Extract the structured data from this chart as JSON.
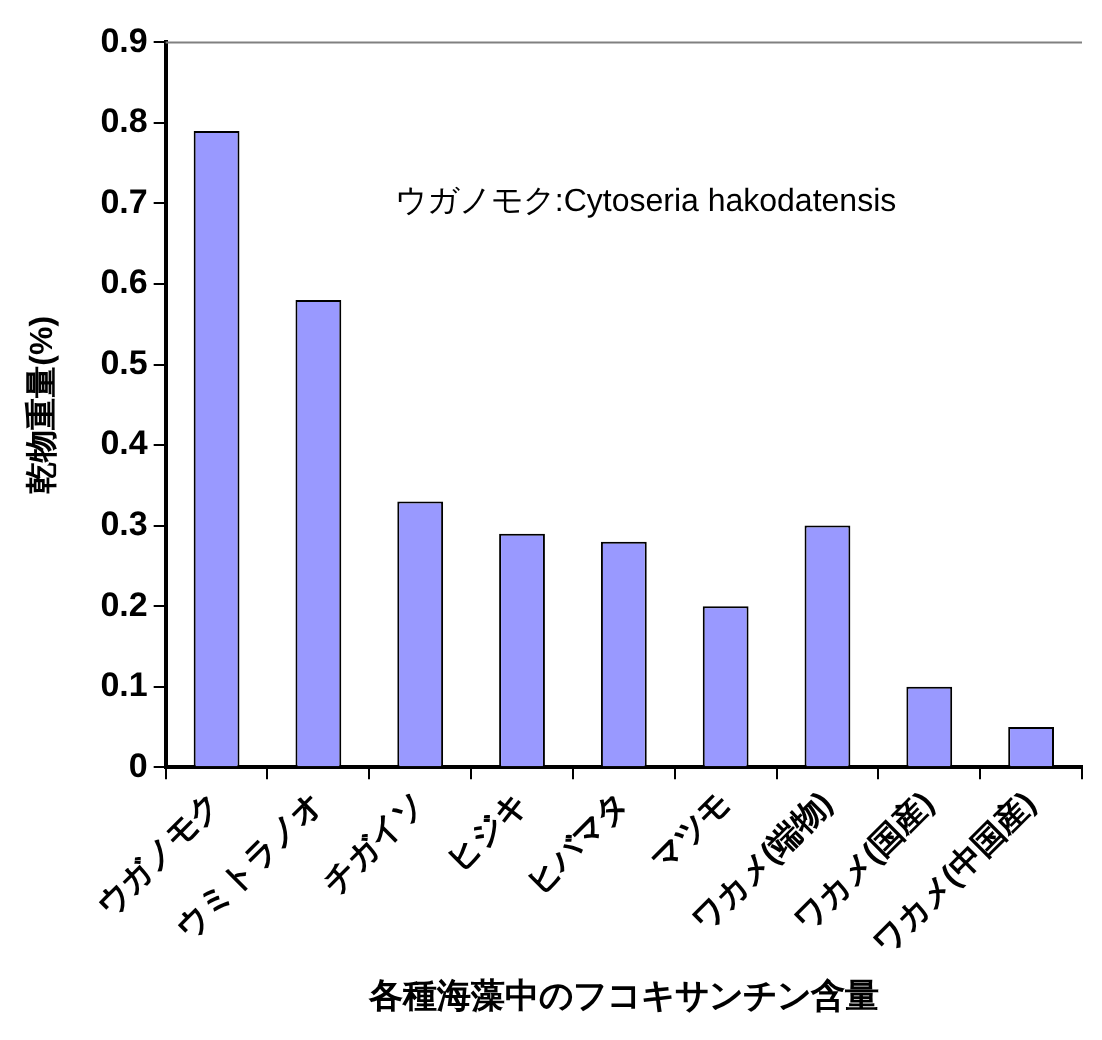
{
  "chart_data": {
    "type": "bar",
    "xlabel": "各種海藻中のフコキサンチン含量",
    "ylabel": "乾物重量(%)",
    "categories": [
      "ウガノモク",
      "ウミトラノオ",
      "チガイソ",
      "ヒジキ",
      "ヒバマタ",
      "マツモ",
      "ワカメ(端物)",
      "ワカメ(国産)",
      "ワカメ(中国産)"
    ],
    "values": [
      0.79,
      0.58,
      0.33,
      0.29,
      0.28,
      0.2,
      0.3,
      0.1,
      0.05
    ],
    "color": "#9999ff",
    "ylim": [
      0,
      0.9
    ],
    "yticks": [
      0,
      0.1,
      0.2,
      0.3,
      0.4,
      0.5,
      0.6,
      0.7,
      0.8,
      0.9
    ],
    "annotations": [
      "ウガノモク:Cytoseria hakodatensis"
    ],
    "grid": false
  }
}
